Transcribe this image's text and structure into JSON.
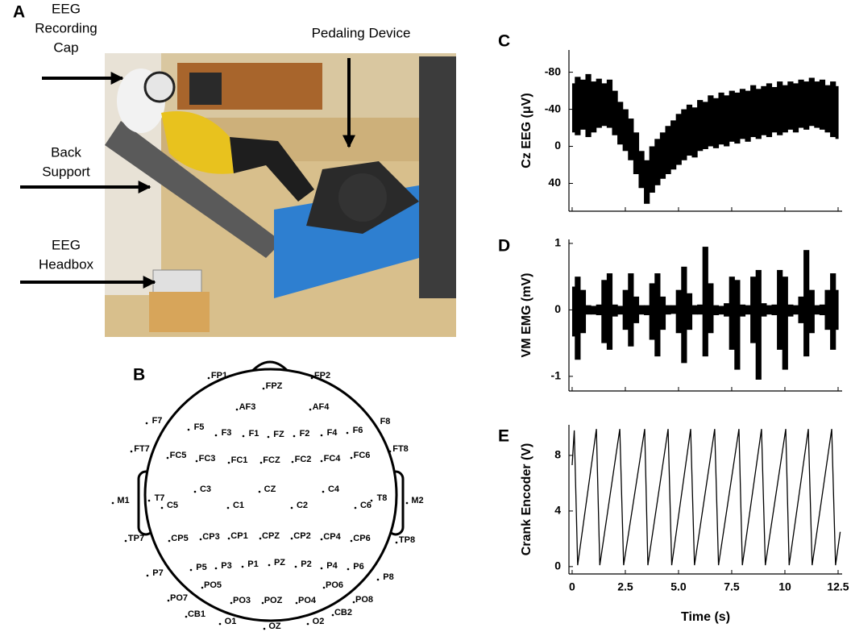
{
  "panel_labels": [
    "A",
    "B",
    "C",
    "D",
    "E"
  ],
  "photo_annotations": [
    [
      "EEG",
      "Recording",
      "Cap"
    ],
    [
      "Pedaling Device"
    ],
    [
      "Back",
      "Support"
    ],
    [
      "EEG",
      "Headbox"
    ]
  ],
  "electrodes": [
    "FP1",
    "FPZ",
    "FP2",
    "AF3",
    "AF4",
    "F7",
    "F5",
    "F3",
    "F1",
    "FZ",
    "F2",
    "F4",
    "F6",
    "F8",
    "FT7",
    "FC5",
    "FC3",
    "FC1",
    "FCZ",
    "FC2",
    "FC4",
    "FC6",
    "FT8",
    "M1",
    "T7",
    "C5",
    "C3",
    "C1",
    "CZ",
    "C2",
    "C4",
    "C6",
    "T8",
    "M2",
    "TP7",
    "CP5",
    "CP3",
    "CP1",
    "CPZ",
    "CP2",
    "CP4",
    "CP6",
    "TP8",
    "P7",
    "P5",
    "P3",
    "P1",
    "PZ",
    "P2",
    "P4",
    "P6",
    "P8",
    "PO7",
    "PO5",
    "PO3",
    "POZ",
    "PO4",
    "PO6",
    "PO8",
    "CB1",
    "O1",
    "OZ",
    "O2",
    "CB2"
  ],
  "chart_data": [
    {
      "type": "band",
      "y_label": "Cz EEG (μV)",
      "x": [
        0,
        0.25,
        0.5,
        0.75,
        1,
        1.25,
        1.5,
        1.75,
        2,
        2.25,
        2.5,
        2.75,
        3,
        3.25,
        3.5,
        3.75,
        4,
        4.25,
        4.5,
        4.75,
        5,
        5.25,
        5.5,
        5.75,
        6,
        6.25,
        6.5,
        6.75,
        7,
        7.25,
        7.5,
        7.75,
        8,
        8.25,
        8.5,
        8.75,
        9,
        9.25,
        9.5,
        9.75,
        10,
        10.25,
        10.5,
        10.75,
        11,
        11.25,
        11.5,
        11.75,
        12,
        12.25,
        12.5
      ],
      "series": [
        {
          "color": "#000000",
          "values": [
            -68,
            -75,
            -72,
            -78,
            -70,
            -73,
            -68,
            -72,
            -60,
            -48,
            -40,
            -30,
            -15,
            5,
            15,
            0,
            -8,
            -15,
            -22,
            -28,
            -35,
            -40,
            -45,
            -42,
            -50,
            -48,
            -55,
            -52,
            -58,
            -55,
            -60,
            -58,
            -62,
            -60,
            -66,
            -62,
            -65,
            -68,
            -64,
            -70,
            -66,
            -70,
            -68,
            -72,
            -70,
            -74,
            -70,
            -72,
            -66,
            -70,
            -65
          ]
        },
        {
          "color": "#000000",
          "values": [
            -15,
            -12,
            -18,
            -10,
            -15,
            -20,
            -22,
            -20,
            -12,
            -2,
            5,
            15,
            30,
            45,
            62,
            50,
            42,
            35,
            30,
            25,
            20,
            15,
            10,
            12,
            5,
            3,
            0,
            2,
            -2,
            0,
            -5,
            -3,
            -8,
            -5,
            -10,
            -8,
            -12,
            -10,
            -15,
            -12,
            -15,
            -18,
            -15,
            -20,
            -18,
            -22,
            -20,
            -18,
            -15,
            -10,
            -8
          ]
        }
      ],
      "xlim": [
        -0.15,
        12.69
      ],
      "ylim": [
        -104,
        70
      ],
      "y_inverted": true,
      "yticks": [
        -80,
        -40,
        0,
        40
      ],
      "xticks": [
        0,
        2.5,
        5,
        7.5,
        10,
        12.5
      ],
      "xtick_labels": false
    },
    {
      "type": "band",
      "y_label": "VM EMG (mV)",
      "x": [
        0,
        0.25,
        0.5,
        0.75,
        1,
        1.25,
        1.5,
        1.75,
        2,
        2.25,
        2.5,
        2.75,
        3,
        3.25,
        3.5,
        3.75,
        4,
        4.25,
        4.5,
        4.75,
        5,
        5.25,
        5.5,
        5.75,
        6,
        6.25,
        6.5,
        6.75,
        7,
        7.25,
        7.5,
        7.75,
        8,
        8.25,
        8.5,
        8.75,
        9,
        9.25,
        9.5,
        9.75,
        10,
        10.25,
        10.5,
        10.75,
        11,
        11.25,
        11.5,
        11.75,
        12,
        12.25,
        12.5
      ],
      "series": [
        {
          "color": "#000000",
          "values": [
            0.35,
            0.5,
            0.3,
            0.07,
            0.06,
            0.08,
            0.45,
            0.55,
            0.08,
            0.06,
            0.3,
            0.55,
            0.2,
            0.07,
            0.07,
            0.4,
            0.55,
            0.2,
            0.07,
            0.07,
            0.3,
            0.65,
            0.25,
            0.07,
            0.08,
            0.95,
            0.4,
            0.07,
            0.06,
            0.1,
            0.5,
            0.45,
            0.08,
            0.07,
            0.5,
            0.6,
            0.1,
            0.07,
            0.08,
            0.6,
            0.5,
            0.08,
            0.07,
            0.2,
            0.9,
            0.3,
            0.07,
            0.08,
            0.3,
            0.55,
            0.3
          ]
        },
        {
          "color": "#000000",
          "values": [
            -0.4,
            -0.75,
            -0.35,
            -0.07,
            -0.07,
            -0.08,
            -0.5,
            -0.6,
            -0.1,
            -0.07,
            -0.3,
            -0.55,
            -0.2,
            -0.07,
            -0.08,
            -0.45,
            -0.7,
            -0.3,
            -0.07,
            -0.06,
            -0.35,
            -0.8,
            -0.3,
            -0.07,
            -0.07,
            -0.7,
            -0.35,
            -0.08,
            -0.07,
            -0.1,
            -0.6,
            -0.9,
            -0.1,
            -0.07,
            -0.5,
            -1.05,
            -0.1,
            -0.07,
            -0.08,
            -0.6,
            -0.9,
            -0.1,
            -0.07,
            -0.2,
            -0.7,
            -0.35,
            -0.07,
            -0.08,
            -0.3,
            -0.6,
            -0.3
          ]
        }
      ],
      "xlim": [
        -0.15,
        12.69
      ],
      "ylim": [
        -1.22,
        1.06
      ],
      "y_inverted": false,
      "yticks": [
        -1,
        0,
        1
      ],
      "xticks": [
        0,
        2.5,
        5,
        7.5,
        10,
        12.5
      ],
      "xtick_labels": false
    },
    {
      "type": "line",
      "y_label": "Crank Encoder (V)",
      "x_label": "Time (s)",
      "x": [
        0,
        0.1,
        0.26,
        1.14,
        1.3,
        2.24,
        2.42,
        3.41,
        3.56,
        4.51,
        4.68,
        5.57,
        5.75,
        6.7,
        6.88,
        7.84,
        8.0,
        8.9,
        9.08,
        10.04,
        10.2,
        11.1,
        11.28,
        12.2,
        12.38,
        12.6
      ],
      "values": [
        7.3,
        9.8,
        0.1,
        9.9,
        0.1,
        9.9,
        0.1,
        9.9,
        0.1,
        9.9,
        0.1,
        9.9,
        0.1,
        9.9,
        0.1,
        9.9,
        0.1,
        9.9,
        0.1,
        9.9,
        0.1,
        9.9,
        0.1,
        9.9,
        0.1,
        2.5
      ],
      "color": "#000000",
      "xlim": [
        -0.15,
        12.69
      ],
      "ylim": [
        -0.53,
        10.2
      ],
      "y_inverted": false,
      "yticks": [
        0,
        4,
        8
      ],
      "xticks": [
        0,
        2.5,
        {
          "value": 5,
          "label": "5.0"
        },
        7.5,
        10,
        12.5
      ],
      "xtick_labels": true
    }
  ]
}
